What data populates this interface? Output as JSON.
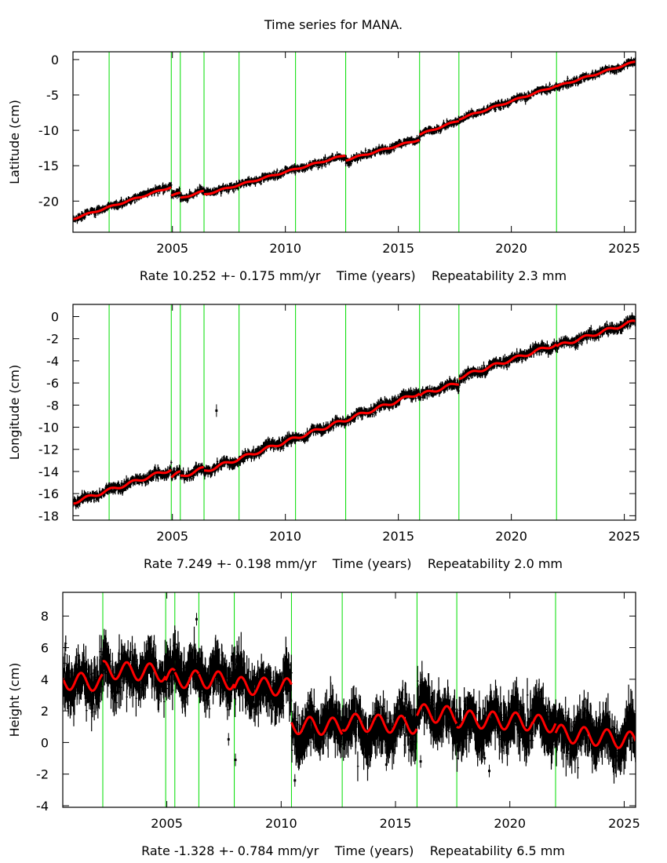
{
  "title": "Time series for MANA.",
  "colors": {
    "data": "#000000",
    "model": "#ff0000",
    "breaks": "#00dd00",
    "axes": "#000000"
  },
  "chart_data": [
    {
      "type": "scatter",
      "component": "Latitude",
      "ylabel": "Latitude (cm)",
      "xlabel": "Rate 10.252 +- 0.175 mm/yr    Time (years)    Repeatability 2.3 mm",
      "rate_mm_per_yr": 10.252,
      "rate_sigma_mm_per_yr": 0.175,
      "repeatability_mm": 2.3,
      "xlim": [
        2000.6,
        2025.5
      ],
      "ylim": [
        -24.4,
        1.1
      ],
      "xticks": [
        2005,
        2010,
        2015,
        2020,
        2025
      ],
      "yticks": [
        0,
        -5,
        -10,
        -15,
        -20
      ],
      "model_segments": [
        {
          "start": 2000.6,
          "end": 2004.95,
          "y_start": -22.5,
          "y_end": -18.0
        },
        {
          "start": 2004.95,
          "end": 2005.35,
          "y_start": -19.2,
          "y_end": -18.9
        },
        {
          "start": 2005.35,
          "end": 2006.4,
          "y_start": -19.6,
          "y_end": -18.6
        },
        {
          "start": 2006.4,
          "end": 2012.67,
          "y_start": -19.1,
          "y_end": -13.5
        },
        {
          "start": 2012.67,
          "end": 2015.94,
          "y_start": -14.2,
          "y_end": -11.3
        },
        {
          "start": 2015.94,
          "end": 2017.68,
          "y_start": -10.6,
          "y_end": -8.6
        },
        {
          "start": 2017.68,
          "end": 2022.0,
          "y_start": -8.4,
          "y_end": -3.7
        },
        {
          "start": 2022.0,
          "end": 2025.5,
          "y_start": -3.8,
          "y_end": -0.3
        }
      ],
      "noise_cm": 0.35,
      "seasonal_amp_cm": 0.1
    },
    {
      "type": "scatter",
      "component": "Longitude",
      "ylabel": "Longitude (cm)",
      "xlabel": "Rate 7.249 +- 0.198 mm/yr    Time (years)    Repeatability 2.0 mm",
      "rate_mm_per_yr": 7.249,
      "rate_sigma_mm_per_yr": 0.198,
      "repeatability_mm": 2.0,
      "xlim": [
        2000.6,
        2025.5
      ],
      "ylim": [
        -18.4,
        1.1
      ],
      "xticks": [
        2005,
        2010,
        2015,
        2020,
        2025
      ],
      "yticks": [
        0,
        -2,
        -4,
        -6,
        -8,
        -10,
        -12,
        -14,
        -16,
        -18
      ],
      "model_segments": [
        {
          "start": 2000.6,
          "end": 2004.95,
          "y_start": -16.8,
          "y_end": -13.8
        },
        {
          "start": 2004.95,
          "end": 2005.35,
          "y_start": -14.5,
          "y_end": -14.1
        },
        {
          "start": 2005.35,
          "end": 2006.4,
          "y_start": -14.5,
          "y_end": -13.7
        },
        {
          "start": 2006.4,
          "end": 2015.94,
          "y_start": -14.0,
          "y_end": -6.9
        },
        {
          "start": 2015.94,
          "end": 2017.68,
          "y_start": -7.1,
          "y_end": -6.0
        },
        {
          "start": 2017.68,
          "end": 2022.0,
          "y_start": -5.5,
          "y_end": -2.5
        },
        {
          "start": 2022.0,
          "end": 2025.5,
          "y_start": -2.7,
          "y_end": -0.4
        }
      ],
      "outliers": [
        {
          "x": 2006.95,
          "y": -8.5
        }
      ],
      "noise_cm": 0.3,
      "seasonal_amp_cm": 0.15
    },
    {
      "type": "scatter",
      "component": "Height",
      "ylabel": "Height (cm)",
      "xlabel": "Rate -1.328 +- 0.784 mm/yr    Time (years)    Repeatability 6.5 mm",
      "rate_mm_per_yr": -1.328,
      "rate_sigma_mm_per_yr": 0.784,
      "repeatability_mm": 6.5,
      "xlim": [
        2000.45,
        2025.5
      ],
      "ylim": [
        -4.1,
        9.5
      ],
      "xticks": [
        2005,
        2010,
        2015,
        2020,
        2025
      ],
      "yticks": [
        8,
        6,
        4,
        2,
        0,
        -2,
        -4
      ],
      "model_segments": [
        {
          "start": 2000.45,
          "end": 2002.2,
          "y_start": 3.9,
          "y_end": 3.8
        },
        {
          "start": 2002.2,
          "end": 2004.95,
          "y_start": 4.6,
          "y_end": 4.4
        },
        {
          "start": 2004.95,
          "end": 2005.35,
          "y_start": 4.1,
          "y_end": 4.1
        },
        {
          "start": 2005.35,
          "end": 2006.4,
          "y_start": 4.0,
          "y_end": 4.0
        },
        {
          "start": 2006.4,
          "end": 2007.95,
          "y_start": 4.0,
          "y_end": 3.9
        },
        {
          "start": 2007.95,
          "end": 2010.45,
          "y_start": 3.6,
          "y_end": 3.5
        },
        {
          "start": 2010.45,
          "end": 2012.67,
          "y_start": 1.1,
          "y_end": 1.0
        },
        {
          "start": 2012.67,
          "end": 2015.94,
          "y_start": 1.3,
          "y_end": 1.1
        },
        {
          "start": 2015.94,
          "end": 2017.68,
          "y_start": 1.9,
          "y_end": 1.7
        },
        {
          "start": 2017.68,
          "end": 2021.0,
          "y_start": 1.5,
          "y_end": 1.3
        },
        {
          "start": 2021.0,
          "end": 2022.0,
          "y_start": 1.2,
          "y_end": 1.2
        },
        {
          "start": 2022.0,
          "end": 2025.5,
          "y_start": 0.6,
          "y_end": 0.1
        }
      ],
      "outliers": [
        {
          "x": 2006.3,
          "y": 7.8
        },
        {
          "x": 2007.7,
          "y": 0.2
        },
        {
          "x": 2008.0,
          "y": -1.1
        },
        {
          "x": 2010.6,
          "y": -2.4
        },
        {
          "x": 2014.6,
          "y": -1.4
        },
        {
          "x": 2016.1,
          "y": -1.2
        },
        {
          "x": 2019.1,
          "y": -1.8
        },
        {
          "x": 2018.9,
          "y": -1.0
        }
      ],
      "noise_cm": 1.0,
      "seasonal_amp_cm": 0.55
    }
  ],
  "breaks": [
    2002.2,
    2004.95,
    2005.35,
    2006.4,
    2007.95,
    2010.45,
    2012.67,
    2015.94,
    2017.68,
    2022.0
  ]
}
